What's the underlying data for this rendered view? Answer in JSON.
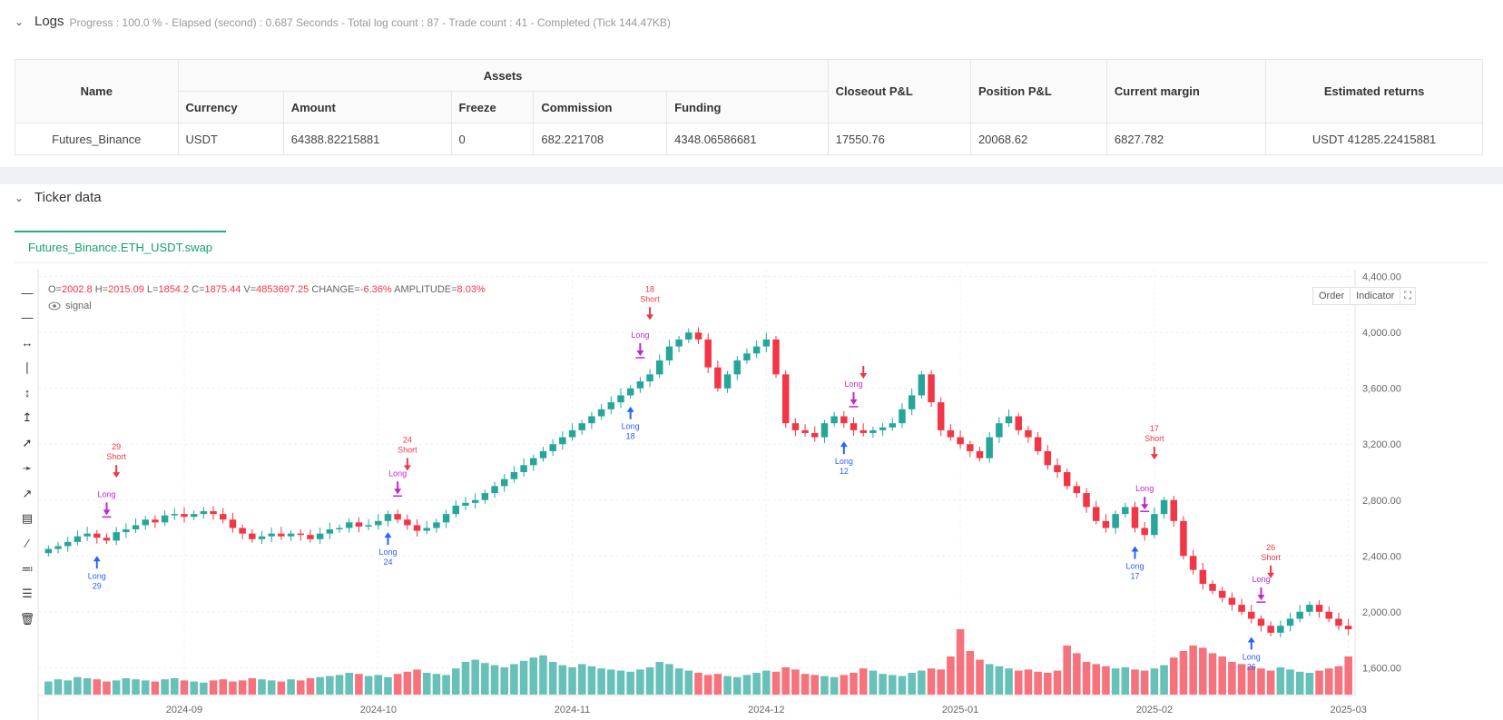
{
  "logs": {
    "title": "Logs",
    "info": "Progress : 100.0 % - Elapsed (second) : 0.687  Seconds - Total log count : 87 - Trade count : 41 - Completed (Tick 144.47KB)"
  },
  "assets_table": {
    "headers": {
      "name": "Name",
      "assets": "Assets",
      "currency": "Currency",
      "amount": "Amount",
      "freeze": "Freeze",
      "commission": "Commission",
      "funding": "Funding",
      "closeout": "Closeout P&L",
      "position": "Position P&L",
      "margin": "Current margin",
      "returns": "Estimated returns"
    },
    "row": {
      "name": "Futures_Binance",
      "currency": "USDT",
      "amount": "64388.82215881",
      "freeze": "0",
      "commission": "682.221708",
      "funding": "4348.06586681",
      "closeout": "17550.76",
      "position": "20068.62",
      "margin": "6827.782",
      "returns": "USDT 41285.22415881"
    }
  },
  "ticker": {
    "title": "Ticker data",
    "tab": "Futures_Binance.ETH_USDT.swap",
    "ohlc": {
      "o_label": "O=",
      "o": "2002.8",
      "h_label": "H=",
      "h": "2015.09",
      "l_label": "L=",
      "l": "1854.2",
      "c_label": "C=",
      "c": "1875.44",
      "v_label": "V=",
      "v": "4853697.25",
      "change_label": "CHANGE=",
      "change": "-6.36%",
      "amp_label": "AMPLITUDE=",
      "amp": "8.03%"
    },
    "signal_label": "signal",
    "order_btn": "Order",
    "indicator_btn": "Indicator"
  },
  "colors": {
    "up": "#26a69a",
    "down": "#f23645",
    "long": "#2962ff",
    "close_long": "#c026d3",
    "accent": "#16b084"
  },
  "chart_data": {
    "type": "candlestick",
    "ylim": [
      1550,
      4450
    ],
    "y_ticks": [
      1600,
      2000,
      2400,
      2800,
      3200,
      3600,
      4000,
      4400
    ],
    "y_tick_labels": [
      "1,600.00",
      "2,000.00",
      "2,400.00",
      "2,800.00",
      "3,200.00",
      "3,600.00",
      "4,000.00",
      "4,400.00"
    ],
    "x_ticks": [
      {
        "index": 14,
        "label": "2024-09"
      },
      {
        "index": 34,
        "label": "2024-10"
      },
      {
        "index": 54,
        "label": "2024-11"
      },
      {
        "index": 74,
        "label": "2024-12"
      },
      {
        "index": 94,
        "label": "2025-01"
      },
      {
        "index": 114,
        "label": "2025-02"
      },
      {
        "index": 134,
        "label": "2025-03"
      }
    ],
    "closes": [
      2450,
      2470,
      2500,
      2540,
      2560,
      2530,
      2510,
      2570,
      2590,
      2620,
      2660,
      2640,
      2690,
      2700,
      2680,
      2700,
      2720,
      2700,
      2660,
      2600,
      2560,
      2520,
      2540,
      2560,
      2540,
      2560,
      2550,
      2520,
      2560,
      2590,
      2600,
      2640,
      2610,
      2620,
      2650,
      2700,
      2660,
      2620,
      2580,
      2600,
      2640,
      2700,
      2760,
      2780,
      2800,
      2850,
      2900,
      2950,
      3000,
      3050,
      3100,
      3150,
      3200,
      3250,
      3300,
      3350,
      3400,
      3450,
      3500,
      3550,
      3600,
      3650,
      3700,
      3800,
      3900,
      3950,
      4000,
      3950,
      3750,
      3600,
      3700,
      3800,
      3850,
      3900,
      3950,
      3700,
      3350,
      3300,
      3280,
      3250,
      3350,
      3400,
      3350,
      3300,
      3280,
      3300,
      3320,
      3350,
      3450,
      3550,
      3700,
      3500,
      3300,
      3250,
      3200,
      3150,
      3100,
      3250,
      3350,
      3400,
      3300,
      3250,
      3150,
      3050,
      3000,
      2900,
      2850,
      2750,
      2650,
      2600,
      2700,
      2750,
      2600,
      2550,
      2700,
      2800,
      2650,
      2400,
      2300,
      2200,
      2150,
      2100,
      2050,
      2000,
      1950,
      1900,
      1850,
      1900,
      1950,
      2000,
      2050,
      2000,
      1950,
      1900,
      1875
    ],
    "volumes": [
      12,
      14,
      13,
      16,
      15,
      14,
      12,
      13,
      15,
      14,
      13,
      12,
      14,
      15,
      13,
      12,
      11,
      13,
      14,
      12,
      13,
      15,
      14,
      13,
      12,
      14,
      13,
      15,
      16,
      17,
      18,
      20,
      19,
      17,
      18,
      16,
      19,
      21,
      23,
      20,
      19,
      18,
      24,
      30,
      32,
      29,
      27,
      25,
      28,
      31,
      34,
      36,
      30,
      27,
      25,
      28,
      26,
      24,
      23,
      22,
      21,
      23,
      25,
      30,
      28,
      24,
      22,
      20,
      18,
      19,
      17,
      16,
      18,
      20,
      22,
      21,
      25,
      23,
      19,
      18,
      17,
      16,
      18,
      20,
      24,
      22,
      19,
      18,
      17,
      20,
      22,
      24,
      23,
      35,
      60,
      40,
      32,
      28,
      26,
      24,
      22,
      23,
      21,
      20,
      22,
      45,
      38,
      30,
      28,
      26,
      24,
      25,
      23,
      22,
      24,
      27,
      34,
      40,
      45,
      43,
      38,
      35,
      30,
      28,
      26,
      24,
      22,
      25,
      23,
      21,
      20,
      22,
      24,
      26,
      35
    ],
    "signals": [
      {
        "type": "long",
        "label": "Long",
        "count": "29"
      },
      {
        "type": "close_long",
        "label": "Long"
      },
      {
        "type": "short",
        "label": "Short",
        "count": "29"
      },
      {
        "type": "long",
        "label": "Long",
        "count": "24"
      },
      {
        "type": "close_long",
        "label": "Long"
      },
      {
        "type": "short",
        "label": "Short",
        "count": "24"
      },
      {
        "type": "long",
        "label": "Long",
        "count": "18"
      },
      {
        "type": "close_long",
        "label": "Long"
      },
      {
        "type": "short",
        "label": "Short",
        "count": "18"
      },
      {
        "type": "long",
        "label": "Long",
        "count": "12"
      },
      {
        "type": "close_long",
        "label": "Long"
      },
      {
        "type": "short",
        "label": "",
        "count": ""
      },
      {
        "type": "long",
        "label": "Long",
        "count": "17"
      },
      {
        "type": "close_long",
        "label": "Long"
      },
      {
        "type": "short",
        "label": "Short",
        "count": "17"
      },
      {
        "type": "long",
        "label": "Long",
        "count": "26"
      },
      {
        "type": "close_long",
        "label": "Long"
      },
      {
        "type": "short",
        "label": "Short",
        "count": "26"
      }
    ]
  }
}
